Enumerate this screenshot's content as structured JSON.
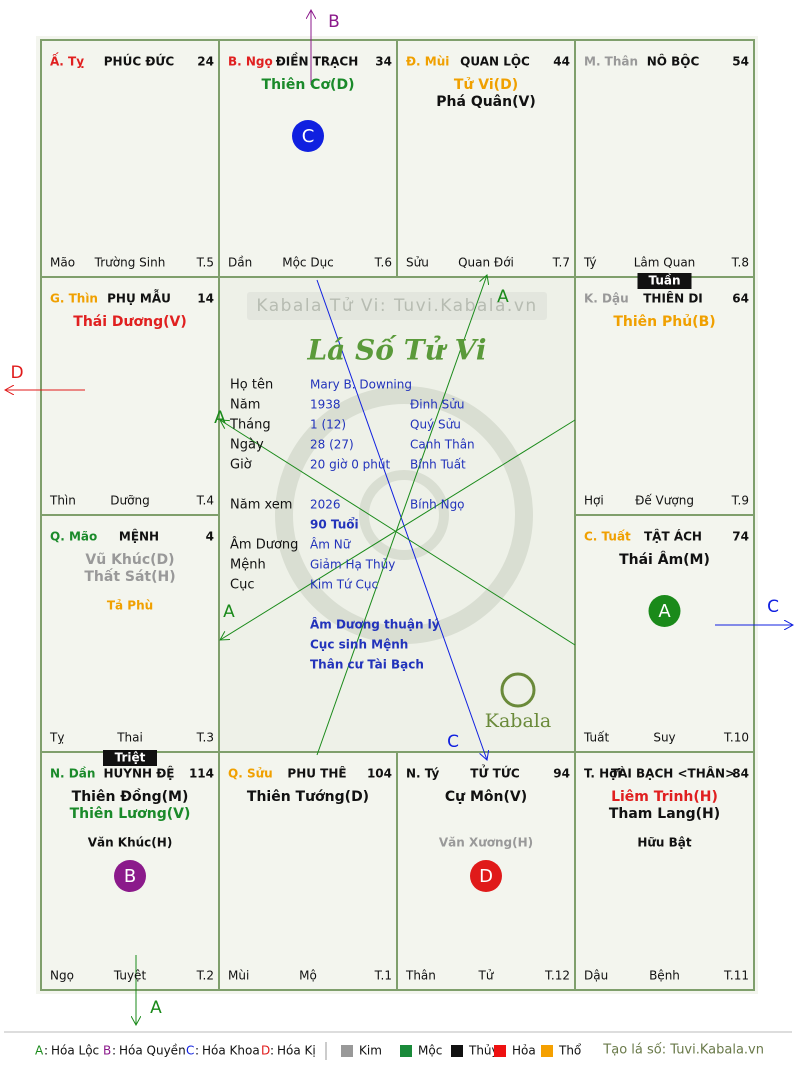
{
  "watermark": "Kabala Tử Vi: Tuvi.Kabala.vn",
  "center_title": "Lá Số Tử Vi",
  "logo_text": "Kabala",
  "palaces": [
    {
      "can_chi": "Ấ. Tỵ",
      "can_chi_color": "#e02020",
      "name": "PHÚC ĐỨC",
      "age": "24",
      "stars": [],
      "branch": "Mão",
      "phase": "Trường Sinh",
      "term": "T.5"
    },
    {
      "can_chi": "B. Ngọ",
      "can_chi_color": "#e02020",
      "name": "ĐIỀN TRẠCH",
      "age": "34",
      "stars": [
        {
          "text": "Thiên Cơ(D)",
          "color": "#1a8a2a"
        }
      ],
      "badge": "C",
      "branch": "Dần",
      "phase": "Mộc Dục",
      "term": "T.6"
    },
    {
      "can_chi": "Đ. Mùi",
      "can_chi_color": "#f0a000",
      "name": "QUAN LỘC",
      "age": "44",
      "stars": [
        {
          "text": "Tử Vi(D)",
          "color": "#f0a000"
        },
        {
          "text": "Phá Quân(V)",
          "color": "#111111"
        }
      ],
      "branch": "Sửu",
      "phase": "Quan Đới",
      "term": "T.7"
    },
    {
      "can_chi": "M. Thân",
      "can_chi_color": "#999999",
      "name": "NÔ BỘC",
      "age": "54",
      "stars": [],
      "branch": "Tý",
      "phase": "Lâm Quan",
      "term": "T.8"
    },
    {
      "can_chi": "G. Thìn",
      "can_chi_color": "#f0a000",
      "name": "PHỤ MẪU",
      "age": "14",
      "stars": [
        {
          "text": "Thái Dương(V)",
          "color": "#e02020"
        }
      ],
      "branch": "Thìn",
      "phase": "Dưỡng",
      "term": "T.4"
    },
    {
      "can_chi": "K. Dậu",
      "can_chi_color": "#999999",
      "name": "THIÊN DI",
      "age": "64",
      "tag": "Tuần",
      "stars": [
        {
          "text": "Thiên Phủ(B)",
          "color": "#f0a000"
        }
      ],
      "branch": "Hợi",
      "phase": "Đế Vượng",
      "term": "T.9"
    },
    {
      "can_chi": "Q. Mão",
      "can_chi_color": "#1a8a2a",
      "name": "MỆNH",
      "age": "4",
      "stars": [
        {
          "text": "Vũ Khúc(D)",
          "color": "#999999"
        },
        {
          "text": "Thất Sát(H)",
          "color": "#999999"
        }
      ],
      "minor": {
        "text": "Tả Phù",
        "color": "#f0a000"
      },
      "branch": "Tỵ",
      "phase": "Thai",
      "term": "T.3"
    },
    {
      "can_chi": "C. Tuất",
      "can_chi_color": "#f0a000",
      "name": "TẬT ÁCH",
      "age": "74",
      "stars": [
        {
          "text": "Thái Âm(M)",
          "color": "#111111"
        }
      ],
      "badge": "A",
      "branch": "Tuất",
      "phase": "Suy",
      "term": "T.10"
    },
    {
      "can_chi": "N. Dần",
      "can_chi_color": "#1a8a2a",
      "name": "HUYNH ĐỆ",
      "age": "114",
      "tag": "Triệt",
      "stars": [
        {
          "text": "Thiên Đồng(M)",
          "color": "#111111"
        },
        {
          "text": "Thiên Lương(V)",
          "color": "#1a8a2a"
        }
      ],
      "minor": {
        "text": "Văn Khúc(H)",
        "color": "#111111"
      },
      "badge": "B",
      "branch": "Ngọ",
      "phase": "Tuyệt",
      "term": "T.2"
    },
    {
      "can_chi": "Q. Sửu",
      "can_chi_color": "#f0a000",
      "name": "PHU THÊ",
      "age": "104",
      "stars": [
        {
          "text": "Thiên Tướng(D)",
          "color": "#111111"
        }
      ],
      "branch": "Mùi",
      "phase": "Mộ",
      "term": "T.1"
    },
    {
      "can_chi": "N. Tý",
      "can_chi_color": "#111111",
      "name": "TỬ TỨC",
      "age": "94",
      "stars": [
        {
          "text": "Cự Môn(V)",
          "color": "#111111"
        }
      ],
      "minor": {
        "text": "Văn Xương(H)",
        "color": "#999999"
      },
      "badge": "D",
      "branch": "Thân",
      "phase": "Tử",
      "term": "T.12"
    },
    {
      "can_chi": "T. Hợi",
      "can_chi_color": "#111111",
      "name": "TÀI BẠCH <THÂN>",
      "age": "84",
      "stars": [
        {
          "text": "Liêm Trinh(H)",
          "color": "#e02020"
        },
        {
          "text": "Tham Lang(H)",
          "color": "#111111"
        }
      ],
      "minor": {
        "text": "Hữu Bật",
        "color": "#111111"
      },
      "branch": "Dậu",
      "phase": "Bệnh",
      "term": "T.11"
    }
  ],
  "info": [
    {
      "label": "Họ tên",
      "value": "Mary B. Downing"
    },
    {
      "label": "Năm",
      "value": "1938",
      "extra": "Đinh Sửu"
    },
    {
      "label": "Tháng",
      "value": "1  (12)",
      "extra": "Quý Sửu"
    },
    {
      "label": "Ngày",
      "value": "28  (27)",
      "extra": "Canh Thân"
    },
    {
      "label": "Giờ",
      "value": "20 giờ 0 phút",
      "extra": "Bính Tuất"
    },
    {
      "label": "Năm xem",
      "value": "2026",
      "extra": "Bính Ngọ"
    },
    {
      "value": "90 Tuổi"
    },
    {
      "label": "Âm Dương",
      "value": "Âm Nữ"
    },
    {
      "label": "Mệnh",
      "value": "Giảm Hạ Thủy"
    },
    {
      "label": "Cục",
      "value": "Kim Tứ Cục"
    }
  ],
  "notes": [
    "Âm Dương thuận lý",
    "Cục sinh Mệnh",
    "Thân cư Tài Bạch"
  ],
  "arrow_labels": [
    "B",
    "D",
    "C",
    "A",
    "A",
    "A",
    "A",
    "C"
  ],
  "hoa": [
    {
      "key": "A",
      "label": "Hóa Lộc",
      "color": "#1a8a1a"
    },
    {
      "key": "B",
      "label": "Hóa Quyền",
      "color": "#8b1a8b"
    },
    {
      "key": "C",
      "label": "Hóa Khoa",
      "color": "#1020e0"
    },
    {
      "key": "D",
      "label": "Hóa Kị",
      "color": "#e01a1a"
    }
  ],
  "elements": [
    {
      "name": "Kim",
      "color": "#999999"
    },
    {
      "name": "Mộc",
      "color": "#1a8a3a"
    },
    {
      "name": "Thủy",
      "color": "#111111"
    },
    {
      "name": "Hỏa",
      "color": "#ee1111"
    },
    {
      "name": "Thổ",
      "color": "#f5a000"
    }
  ],
  "credit": "Tạo lá số: Tuvi.Kabala.vn"
}
